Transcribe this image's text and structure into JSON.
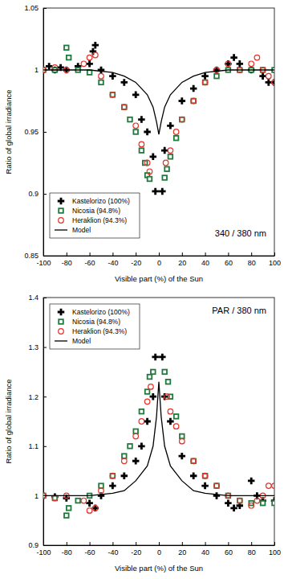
{
  "chart_data": [
    {
      "type": "scatter",
      "annotation": "340 / 380 nm",
      "x_label": "Visible part (%) of the Sun",
      "y_label": "Ratio of global irradiance",
      "xlim": [
        -100,
        100
      ],
      "xticks": [
        -100,
        -80,
        -60,
        -40,
        -20,
        0,
        20,
        40,
        60,
        80,
        100
      ],
      "ylim": [
        0.85,
        1.05
      ],
      "yticks": [
        0.85,
        0.9,
        0.95,
        1,
        1.05
      ],
      "legend": "lower left",
      "series": [
        {
          "name": "Kastelorizo (100%)",
          "color": "#000000",
          "marker": "plus",
          "x": [
            -100,
            -95,
            -90,
            -85,
            -80,
            -70,
            -60,
            -57,
            -55,
            -50,
            -40,
            -30,
            -20,
            -15,
            -10,
            -5,
            -3,
            3,
            5,
            10,
            20,
            30,
            40,
            50,
            60,
            65,
            70,
            80,
            90,
            95,
            100
          ],
          "values": [
            1.0,
            1.003,
            1.0,
            1.002,
            1.0,
            1.003,
            1.005,
            1.015,
            1.02,
            1.0,
            0.995,
            0.99,
            0.98,
            0.96,
            0.95,
            0.93,
            0.902,
            0.902,
            0.935,
            0.955,
            0.975,
            0.985,
            0.995,
            1.0,
            1.005,
            1.01,
            1.005,
            1.0,
            0.995,
            0.99,
            0.99
          ]
        },
        {
          "name": "Nicosia (94.8%)",
          "color": "#1e7a3c",
          "marker": "square",
          "x": [
            -100,
            -90,
            -80,
            -78,
            -70,
            -60,
            -50,
            -40,
            -30,
            -25,
            -20,
            -15,
            -12,
            -10,
            -8,
            5,
            7,
            10,
            15,
            20,
            30,
            40,
            50,
            60,
            70,
            80,
            90,
            100
          ],
          "values": [
            1.0,
            1.0,
            1.018,
            1.01,
            1.0,
            0.998,
            0.99,
            0.98,
            0.97,
            0.96,
            0.95,
            0.935,
            0.925,
            0.915,
            0.912,
            0.913,
            0.92,
            0.93,
            0.945,
            0.96,
            0.975,
            0.99,
            0.995,
            1.0,
            1.0,
            1.0,
            1.0,
            1.0
          ]
        },
        {
          "name": "Heraklion (94.3%)",
          "color": "#e8322b",
          "marker": "circle",
          "x": [
            -100,
            -90,
            -80,
            -65,
            -60,
            -55,
            -50,
            -40,
            -30,
            -20,
            -15,
            -10,
            -8,
            6,
            10,
            15,
            20,
            30,
            40,
            50,
            60,
            70,
            80,
            85,
            90,
            95,
            100
          ],
          "values": [
            1.0,
            1.002,
            1.0,
            1.005,
            1.01,
            1.012,
            0.995,
            0.98,
            0.97,
            0.955,
            0.94,
            0.925,
            0.918,
            0.925,
            0.935,
            0.95,
            0.96,
            0.975,
            0.99,
            1.0,
            1.005,
            1.0,
            1.005,
            1.01,
            1.0,
            0.995,
            0.99
          ]
        },
        {
          "name": "Model",
          "color": "#000000",
          "type": "line",
          "line_style": "solid",
          "x": [
            -100,
            -60,
            -40,
            -30,
            -20,
            -10,
            -5,
            -2,
            0,
            2,
            5,
            10,
            20,
            30,
            40,
            60,
            100
          ],
          "values": [
            1.0,
            1.0,
            0.998,
            0.995,
            0.99,
            0.98,
            0.97,
            0.958,
            0.948,
            0.958,
            0.97,
            0.98,
            0.99,
            0.995,
            0.998,
            1.0,
            1.0
          ]
        }
      ]
    },
    {
      "type": "scatter",
      "annotation": "PAR / 380 nm",
      "x_label": "Visible part (%) of the Sun",
      "y_label": "Ratio of global irradiance",
      "xlim": [
        -100,
        100
      ],
      "xticks": [
        -100,
        -80,
        -60,
        -40,
        -20,
        0,
        20,
        40,
        60,
        80,
        100
      ],
      "ylim": [
        0.9,
        1.4
      ],
      "yticks": [
        0.9,
        1,
        1.1,
        1.2,
        1.3,
        1.4
      ],
      "legend": "upper left",
      "series": [
        {
          "name": "Kastelorizo (100%)",
          "color": "#000000",
          "marker": "plus",
          "x": [
            -100,
            -90,
            -80,
            -60,
            -55,
            -50,
            -40,
            -30,
            -20,
            -15,
            -10,
            -5,
            -3,
            3,
            5,
            10,
            20,
            30,
            40,
            50,
            60,
            65,
            70,
            80,
            85,
            90,
            100
          ],
          "values": [
            1.0,
            0.998,
            0.995,
            0.985,
            0.975,
            1.0,
            1.02,
            1.04,
            1.07,
            1.1,
            1.15,
            1.2,
            1.28,
            1.28,
            1.2,
            1.15,
            1.08,
            1.04,
            1.02,
            1.0,
            0.985,
            0.975,
            0.98,
            1.03,
            1.0,
            0.99,
            0.99
          ]
        },
        {
          "name": "Nicosia (94.8%)",
          "color": "#1e7a3c",
          "marker": "square",
          "x": [
            -100,
            -90,
            -80,
            -78,
            -70,
            -60,
            -50,
            -40,
            -30,
            -25,
            -20,
            -15,
            -10,
            -8,
            -5,
            5,
            8,
            10,
            15,
            20,
            30,
            40,
            50,
            60,
            70,
            80,
            90,
            100
          ],
          "values": [
            1.0,
            0.995,
            0.96,
            0.975,
            0.99,
            1.0,
            1.02,
            1.04,
            1.08,
            1.1,
            1.13,
            1.17,
            1.21,
            1.24,
            1.25,
            1.25,
            1.23,
            1.2,
            1.16,
            1.12,
            1.07,
            1.04,
            1.02,
            1.0,
            0.99,
            0.985,
            0.985,
            0.985
          ]
        },
        {
          "name": "Heraklion (94.3%)",
          "color": "#e8322b",
          "marker": "circle",
          "x": [
            -100,
            -90,
            -80,
            -65,
            -60,
            -55,
            -50,
            -40,
            -30,
            -20,
            -15,
            -10,
            -7,
            7,
            10,
            15,
            20,
            30,
            40,
            50,
            60,
            70,
            80,
            85,
            90,
            95,
            100
          ],
          "values": [
            1.0,
            0.995,
            1.0,
            0.99,
            0.97,
            0.975,
            1.01,
            1.04,
            1.07,
            1.12,
            1.15,
            1.19,
            1.22,
            1.2,
            1.17,
            1.14,
            1.11,
            1.07,
            1.04,
            1.02,
            1.0,
            0.99,
            0.98,
            0.99,
            1.0,
            1.02,
            1.02
          ]
        },
        {
          "name": "Model",
          "color": "#000000",
          "type": "line",
          "line_style": "solid",
          "x": [
            -100,
            -60,
            -40,
            -30,
            -20,
            -10,
            -5,
            -2,
            0,
            2,
            5,
            10,
            20,
            30,
            40,
            60,
            100
          ],
          "values": [
            1.0,
            1.0,
            1.005,
            1.01,
            1.03,
            1.06,
            1.1,
            1.16,
            1.23,
            1.16,
            1.1,
            1.06,
            1.03,
            1.01,
            1.005,
            1.0,
            1.0
          ]
        }
      ]
    }
  ]
}
